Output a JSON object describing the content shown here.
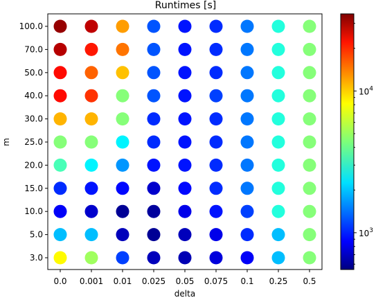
{
  "chart_data": {
    "type": "scatter",
    "title": "Runtimes [s]",
    "xlabel": "delta",
    "ylabel": "m",
    "x_categories": [
      "0.0",
      "0.001",
      "0.01",
      "0.025",
      "0.05",
      "0.075",
      "0.1",
      "0.25",
      "0.5"
    ],
    "y_categories": [
      "3.0",
      "5.0",
      "10.0",
      "15.0",
      "20.0",
      "25.0",
      "30.0",
      "40.0",
      "50.0",
      "70.0",
      "100.0"
    ],
    "colorbar": {
      "scale": "log",
      "cmap": "jet",
      "range": [
        550,
        35000
      ],
      "tick_labels": [
        {
          "value": 1000,
          "base": "10",
          "exp": "3"
        },
        {
          "value": 10000,
          "base": "10",
          "exp": "4"
        }
      ]
    },
    "values": [
      [
        7500,
        5000,
        1200,
        700,
        680,
        800,
        900,
        2000,
        4500
      ],
      [
        2000,
        2000,
        700,
        600,
        700,
        850,
        1100,
        2000,
        4500
      ],
      [
        900,
        750,
        600,
        620,
        850,
        1000,
        1200,
        3000,
        4500
      ],
      [
        1100,
        1000,
        950,
        750,
        950,
        1100,
        1500,
        3000,
        4500
      ],
      [
        3500,
        2500,
        1700,
        1000,
        1000,
        1100,
        1500,
        3000,
        4500
      ],
      [
        4500,
        4500,
        2500,
        1100,
        1000,
        1100,
        1500,
        3000,
        4500
      ],
      [
        10000,
        10000,
        4500,
        1100,
        1000,
        1100,
        1500,
        3000,
        4500
      ],
      [
        20000,
        17000,
        4500,
        1300,
        1000,
        1200,
        1500,
        3000,
        4500
      ],
      [
        20000,
        14000,
        9500,
        1300,
        1000,
        1100,
        1500,
        3000,
        4500
      ],
      [
        28000,
        19000,
        13000,
        1300,
        1000,
        1100,
        1500,
        3000,
        4500
      ],
      [
        32000,
        27000,
        11000,
        1300,
        1000,
        1100,
        1500,
        3000,
        4500
      ]
    ]
  }
}
